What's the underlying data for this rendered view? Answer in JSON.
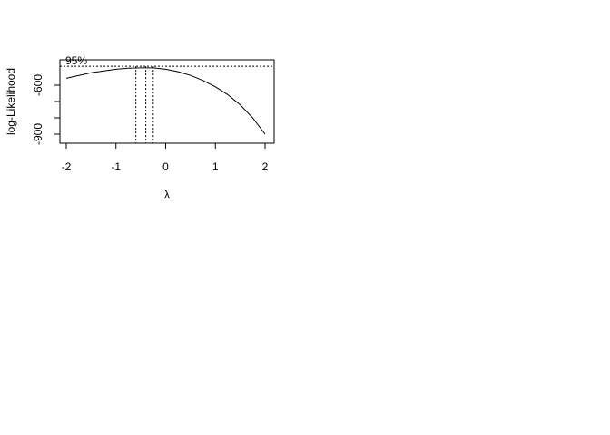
{
  "chart_data": {
    "type": "line",
    "title": "",
    "xlabel": "λ",
    "ylabel": "log-Likelihood",
    "xlim": [
      -2.1,
      2.1
    ],
    "ylim": [
      -930,
      -480
    ],
    "x_ticks": [
      -2,
      -1,
      0,
      1,
      2
    ],
    "x_tick_labels": [
      "-2",
      "-1",
      "0",
      "1",
      "2"
    ],
    "y_ticks": [
      -600,
      -700,
      -800,
      -900
    ],
    "y_tick_labels": [
      "-600",
      "",
      "",
      "-900"
    ],
    "grid": false,
    "legend": "none",
    "series": [
      {
        "x": [
          -2.0,
          -1.5,
          -1.0,
          -0.75,
          -0.5,
          -0.25,
          0.0,
          0.25,
          0.5,
          0.75,
          1.0,
          1.25,
          1.5,
          1.75,
          2.0
        ],
        "y": [
          -558,
          -524,
          -502,
          -496,
          -494,
          -494,
          -502,
          -517,
          -540,
          -571,
          -610,
          -658,
          -720,
          -800,
          -900
        ]
      }
    ],
    "ci_label": "95%",
    "ci_level_y": -484,
    "lambda_hat": -0.4,
    "ci_lower": -0.6,
    "ci_upper": -0.25
  }
}
